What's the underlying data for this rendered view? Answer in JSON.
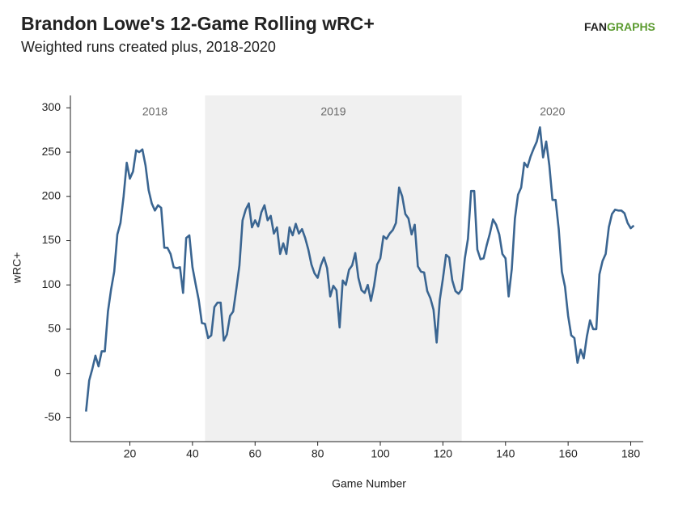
{
  "chart_data": {
    "type": "line",
    "title": "Brandon Lowe's 12-Game Rolling wRC+",
    "subtitle": "Weighted runs created plus, 2018-2020",
    "logo": [
      "FAN",
      "GRAPHS"
    ],
    "x_label": "Game Number",
    "y_label": "wRC+",
    "color": "#3a6591",
    "shade_color": "#f0f0f0",
    "shaded_xrange": [
      44,
      126
    ],
    "annotations": [
      {
        "text": "2018",
        "x": 28
      },
      {
        "text": "2019",
        "x": 85
      },
      {
        "text": "2020",
        "x": 155
      }
    ],
    "xlim": [
      1,
      184
    ],
    "ylim": [
      -77,
      314
    ],
    "xticks": [
      20,
      40,
      60,
      80,
      100,
      120,
      140,
      160,
      180
    ],
    "yticks": [
      -50,
      0,
      50,
      100,
      150,
      200,
      250,
      300
    ],
    "x": [
      6,
      7,
      8,
      9,
      10,
      11,
      12,
      13,
      14,
      15,
      16,
      17,
      18,
      19,
      20,
      21,
      22,
      23,
      24,
      25,
      26,
      27,
      28,
      29,
      30,
      31,
      32,
      33,
      34,
      35,
      36,
      37,
      38,
      39,
      40,
      41,
      42,
      43,
      44,
      45,
      46,
      47,
      48,
      49,
      50,
      51,
      52,
      53,
      54,
      55,
      56,
      57,
      58,
      59,
      60,
      61,
      62,
      63,
      64,
      65,
      66,
      67,
      68,
      69,
      70,
      71,
      72,
      73,
      74,
      75,
      76,
      77,
      78,
      79,
      80,
      81,
      82,
      83,
      84,
      85,
      86,
      87,
      88,
      89,
      90,
      91,
      92,
      93,
      94,
      95,
      96,
      97,
      98,
      99,
      100,
      101,
      102,
      103,
      104,
      105,
      106,
      107,
      108,
      109,
      110,
      111,
      112,
      113,
      114,
      115,
      116,
      117,
      118,
      119,
      120,
      121,
      122,
      123,
      124,
      125,
      126,
      127,
      128,
      129,
      130,
      131,
      132,
      133,
      134,
      135,
      136,
      137,
      138,
      139,
      140,
      141,
      142,
      143,
      144,
      145,
      146,
      147,
      148,
      149,
      150,
      151,
      152,
      153,
      154,
      155,
      156,
      157,
      158,
      159,
      160,
      161,
      162,
      163,
      164,
      165,
      166,
      167,
      168,
      169,
      170,
      171,
      172,
      173,
      174,
      175,
      176,
      177,
      178,
      179,
      180,
      181
    ],
    "values": [
      -43,
      -8,
      5,
      20,
      8,
      25,
      25,
      70,
      95,
      115,
      157,
      170,
      200,
      238,
      220,
      228,
      252,
      250,
      253,
      235,
      207,
      192,
      184,
      190,
      187,
      142,
      142,
      135,
      120,
      119,
      120,
      91,
      153,
      156,
      120,
      101,
      83,
      57,
      56,
      40,
      43,
      75,
      80,
      80,
      37,
      44,
      65,
      70,
      95,
      122,
      173,
      185,
      192,
      165,
      173,
      166,
      182,
      190,
      173,
      178,
      158,
      165,
      135,
      147,
      135,
      165,
      156,
      169,
      158,
      163,
      153,
      140,
      123,
      113,
      108,
      122,
      131,
      119,
      87,
      99,
      94,
      52,
      105,
      100,
      117,
      122,
      136,
      108,
      94,
      91,
      100,
      82,
      99,
      123,
      130,
      155,
      152,
      158,
      162,
      170,
      210,
      200,
      180,
      175,
      157,
      168,
      121,
      115,
      114,
      93,
      85,
      72,
      35,
      83,
      107,
      134,
      131,
      105,
      93,
      90,
      95,
      130,
      152,
      206,
      206,
      140,
      129,
      130,
      145,
      158,
      174,
      168,
      157,
      135,
      130,
      87,
      118,
      175,
      202,
      210,
      238,
      233,
      245,
      254,
      262,
      278,
      244,
      262,
      235,
      196,
      196,
      163,
      115,
      98,
      65,
      43,
      40,
      12,
      27,
      17,
      42,
      60,
      50,
      50,
      112,
      127,
      135,
      165,
      180,
      185,
      184,
      184,
      181,
      170,
      164,
      167
    ]
  }
}
